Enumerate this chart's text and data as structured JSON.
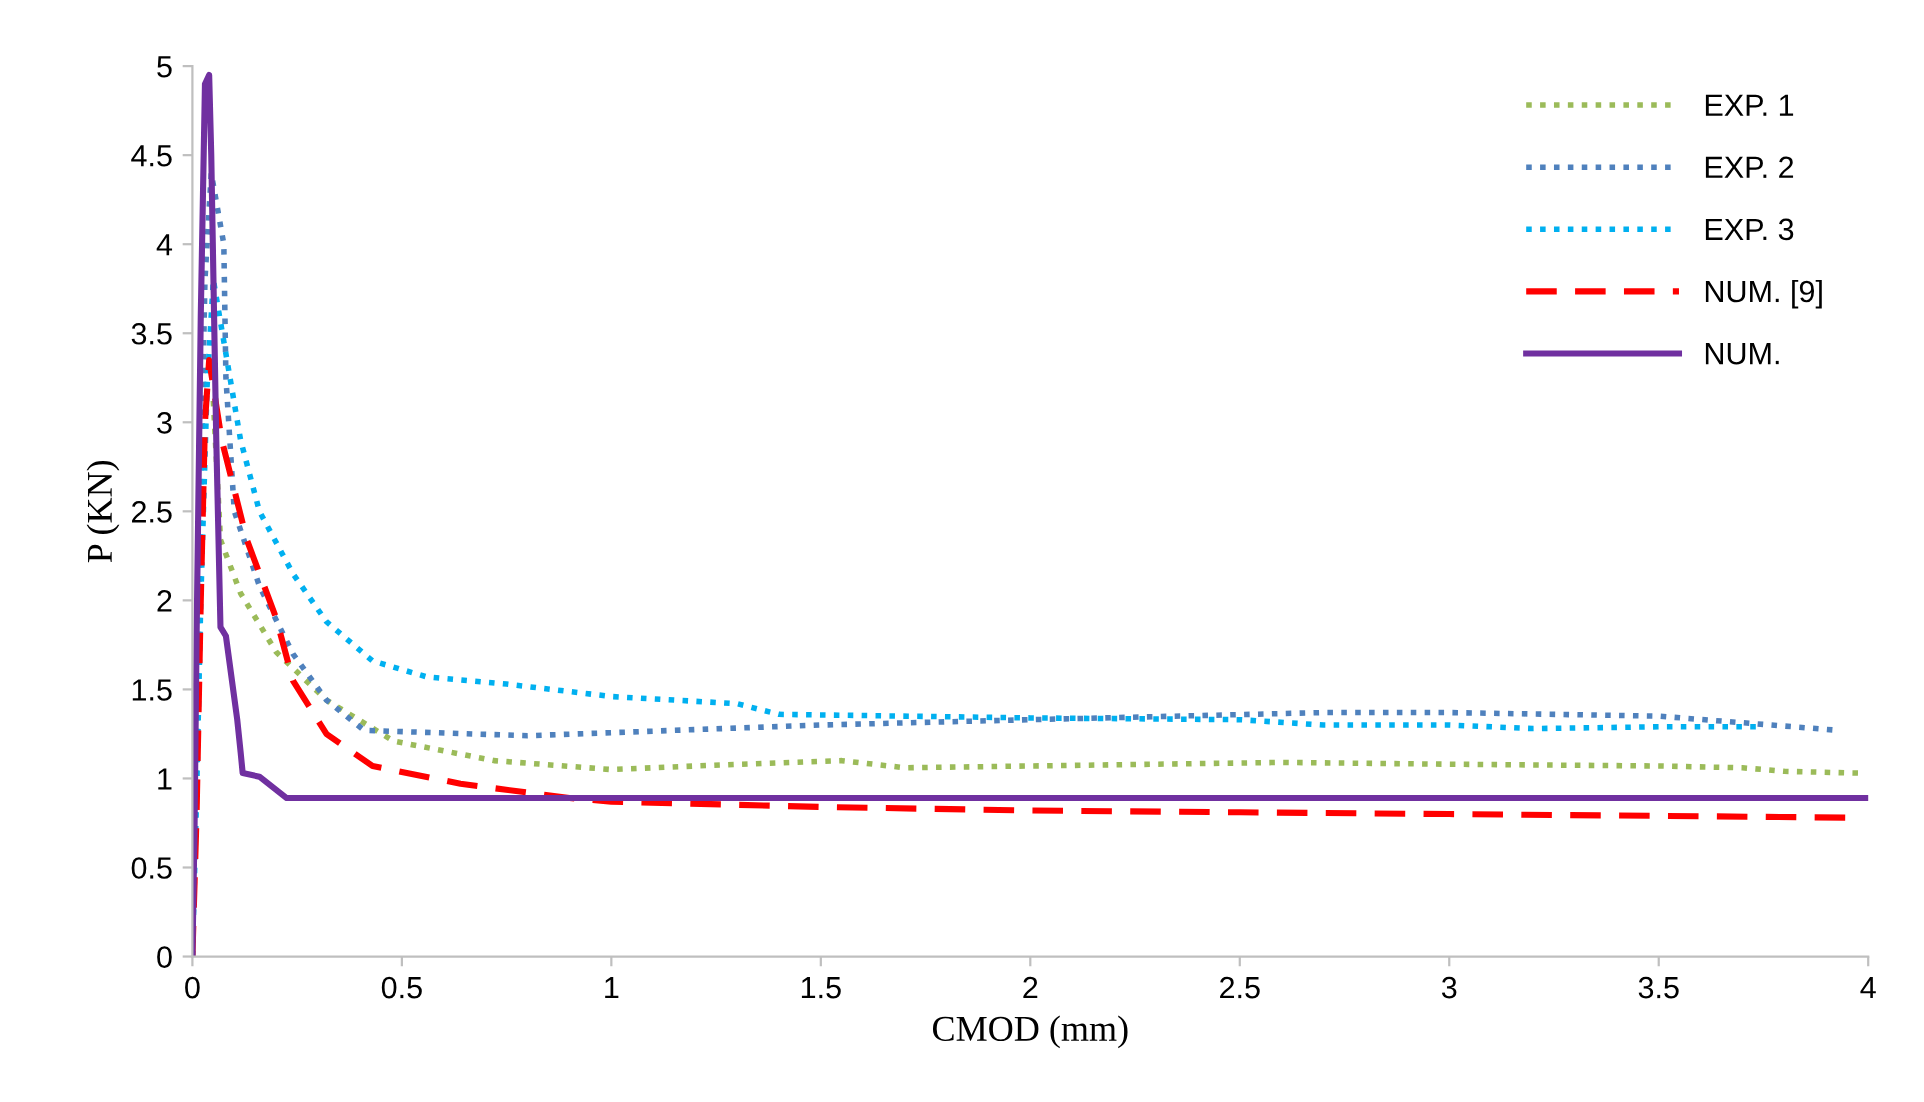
{
  "chart_data": {
    "type": "line",
    "xlabel": "CMOD (mm)",
    "ylabel": "P (KN)",
    "xlim": [
      0,
      4
    ],
    "ylim": [
      0,
      5
    ],
    "xticks": [
      0,
      0.5,
      1,
      1.5,
      2,
      2.5,
      3,
      3.5,
      4
    ],
    "yticks": [
      0,
      0.5,
      1,
      1.5,
      2,
      2.5,
      3,
      3.5,
      4,
      4.5,
      5
    ],
    "grid": false,
    "legend": "top right",
    "series": [
      {
        "name": "EXP. 1",
        "color": "#9bbb59",
        "line_style": "dotted",
        "x": [
          0.05,
          0.067,
          0.115,
          0.2,
          0.32,
          0.48,
          0.72,
          1.0,
          1.2,
          1.55,
          1.7,
          2.0,
          2.6,
          3.0,
          3.5,
          3.7,
          3.8,
          3.98
        ],
        "values": [
          3.12,
          2.34,
          2.04,
          1.71,
          1.44,
          1.21,
          1.1,
          1.05,
          1.07,
          1.1,
          1.06,
          1.07,
          1.09,
          1.08,
          1.07,
          1.06,
          1.04,
          1.03
        ]
      },
      {
        "name": "EXP. 2",
        "color": "#4f81bd",
        "line_style": "dotted",
        "x": [
          0,
          0.01,
          0.02,
          0.03,
          0.045,
          0.075,
          0.08,
          0.1,
          0.16,
          0.24,
          0.32,
          0.41,
          0.8,
          1.5,
          2.0,
          2.7,
          3.0,
          3.5,
          3.93
        ],
        "values": [
          0,
          1.2,
          2.6,
          3.8,
          4.4,
          4.0,
          3.25,
          2.5,
          2.08,
          1.7,
          1.44,
          1.27,
          1.24,
          1.3,
          1.33,
          1.37,
          1.37,
          1.35,
          1.27
        ]
      },
      {
        "name": "EXP. 3",
        "color": "#00b0f0",
        "line_style": "dotted",
        "x": [
          0,
          0.01,
          0.02,
          0.035,
          0.05,
          0.115,
          0.16,
          0.24,
          0.32,
          0.43,
          0.56,
          0.75,
          1.0,
          1.3,
          1.4,
          2.0,
          2.5,
          2.7,
          3.0,
          3.2,
          3.5,
          3.75
        ],
        "values": [
          0,
          0.9,
          2.0,
          3.2,
          3.8,
          2.9,
          2.5,
          2.15,
          1.88,
          1.66,
          1.57,
          1.53,
          1.46,
          1.42,
          1.36,
          1.34,
          1.33,
          1.3,
          1.3,
          1.28,
          1.29,
          1.29
        ]
      },
      {
        "name": "NUM. [9]",
        "color": "#ff0000",
        "line_style": "dashed",
        "x": [
          0,
          0.01,
          0.02,
          0.03,
          0.04,
          0.07,
          0.13,
          0.2,
          0.24,
          0.32,
          0.43,
          0.64,
          0.9,
          1.0,
          1.5,
          2.0,
          2.5,
          3.0,
          3.5,
          3.95
        ],
        "values": [
          0,
          0.8,
          2.0,
          3.0,
          3.35,
          2.9,
          2.34,
          1.9,
          1.55,
          1.25,
          1.07,
          0.97,
          0.89,
          0.87,
          0.84,
          0.82,
          0.81,
          0.8,
          0.79,
          0.78
        ]
      },
      {
        "name": "NUM.",
        "color": "#7030a0",
        "line_style": "solid",
        "x": [
          0,
          0.005,
          0.01,
          0.02,
          0.03,
          0.04,
          0.045,
          0.05,
          0.057,
          0.067,
          0.08,
          0.107,
          0.115,
          0.12,
          0.16,
          0.225,
          1.0,
          2.0,
          3.0,
          4.0
        ],
        "values": [
          0,
          0.7,
          1.8,
          3.6,
          4.9,
          4.95,
          4.5,
          3.83,
          2.9,
          1.85,
          1.8,
          1.33,
          1.15,
          1.03,
          1.01,
          0.89,
          0.89,
          0.89,
          0.89,
          0.89
        ]
      }
    ]
  }
}
